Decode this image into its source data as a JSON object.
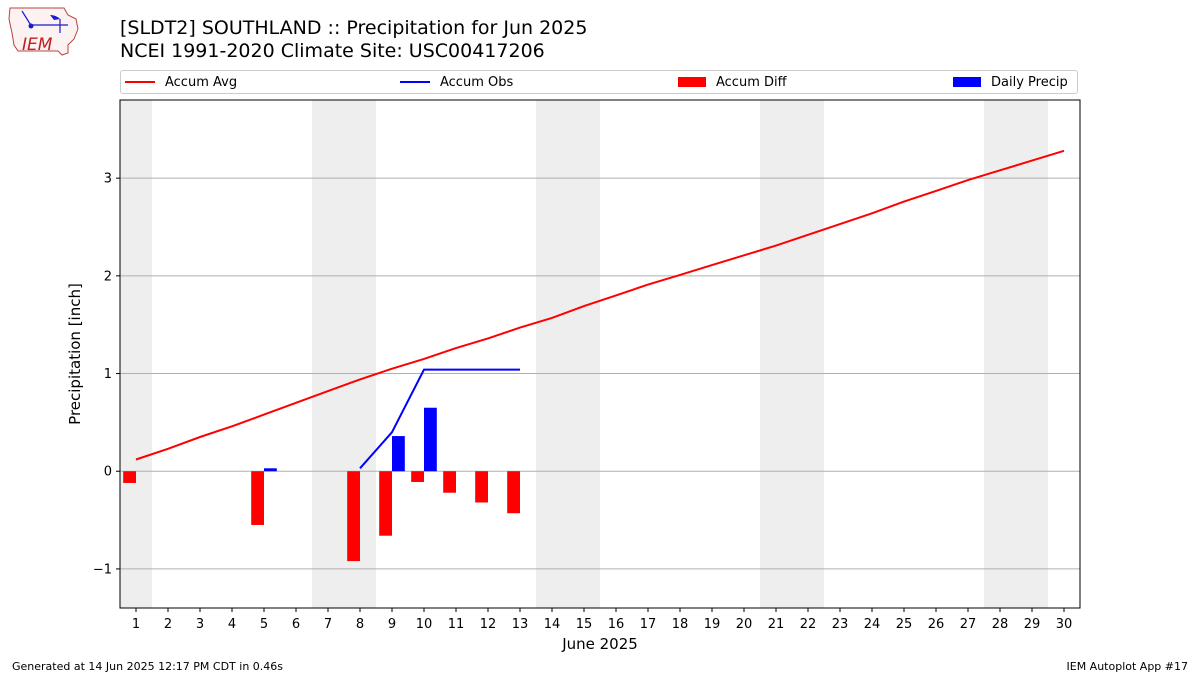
{
  "header": {
    "title_line1": "[SLDT2] SOUTHLAND :: Precipitation for Jun 2025",
    "title_line2": "NCEI 1991-2020 Climate Site: USC00417206",
    "logo_text": "IEM"
  },
  "footer": {
    "generated": "Generated at 14 Jun 2025 12:17 PM CDT in 0.46s",
    "app": "IEM Autoplot App #17"
  },
  "colors": {
    "avg": "#ff0000",
    "obs": "#0000ff",
    "diff": "#ff0000",
    "daily": "#0000ff",
    "weekend_shade": "#eeeeee",
    "grid": "#b0b0b0"
  },
  "chart_data": {
    "type": "bar",
    "xlabel": "June 2025",
    "ylabel": "Precipitation [inch]",
    "xlim": [
      0.5,
      30.5
    ],
    "ylim": [
      -1.4,
      3.8
    ],
    "yticks": [
      -1,
      0,
      1,
      2,
      3
    ],
    "grid": "horizontal",
    "legend_placement": "top",
    "days": [
      1,
      2,
      3,
      4,
      5,
      6,
      7,
      8,
      9,
      10,
      11,
      12,
      13,
      14,
      15,
      16,
      17,
      18,
      19,
      20,
      21,
      22,
      23,
      24,
      25,
      26,
      27,
      28,
      29,
      30
    ],
    "weekend_shading": [
      [
        0.5,
        1.5
      ],
      [
        6.5,
        8.5
      ],
      [
        13.5,
        15.5
      ],
      [
        20.5,
        22.5
      ],
      [
        27.5,
        29.5
      ]
    ],
    "series": [
      {
        "name": "Accum Avg",
        "type": "line",
        "x": [
          1,
          2,
          3,
          4,
          5,
          6,
          7,
          8,
          9,
          10,
          11,
          12,
          13,
          14,
          15,
          16,
          17,
          18,
          19,
          20,
          21,
          22,
          23,
          24,
          25,
          26,
          27,
          28,
          29,
          30
        ],
        "values": [
          0.12,
          0.23,
          0.35,
          0.46,
          0.58,
          0.7,
          0.82,
          0.94,
          1.05,
          1.15,
          1.26,
          1.36,
          1.47,
          1.57,
          1.69,
          1.8,
          1.91,
          2.01,
          2.11,
          2.21,
          2.31,
          2.42,
          2.53,
          2.64,
          2.76,
          2.87,
          2.98,
          3.08,
          3.18,
          3.28
        ]
      },
      {
        "name": "Accum Obs",
        "type": "line",
        "x": [
          8,
          9,
          10,
          11,
          12,
          13
        ],
        "values": [
          0.03,
          0.4,
          1.04,
          1.04,
          1.04,
          1.04
        ]
      },
      {
        "name": "Accum Diff",
        "type": "bar",
        "x": [
          1,
          5,
          8,
          9,
          10,
          11,
          12,
          13
        ],
        "values": [
          -0.12,
          -0.55,
          -0.92,
          -0.66,
          -0.11,
          -0.22,
          -0.32,
          -0.43
        ]
      },
      {
        "name": "Daily Precip",
        "type": "bar",
        "x": [
          5,
          9,
          10
        ],
        "values": [
          0.03,
          0.36,
          0.65
        ]
      }
    ]
  }
}
